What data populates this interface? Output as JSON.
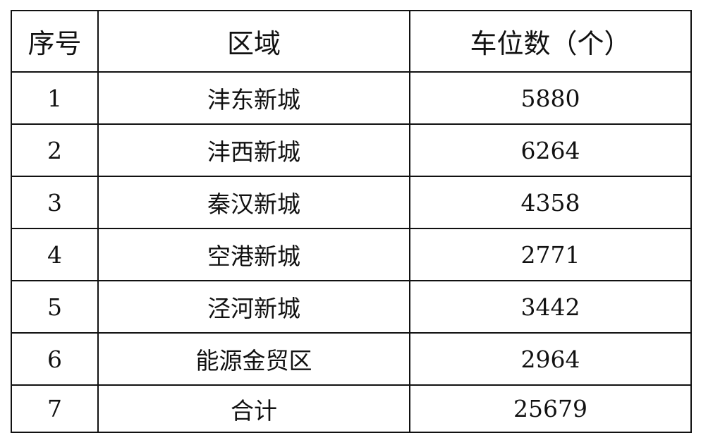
{
  "table": {
    "headers": [
      "序号",
      "区域",
      "车位数（个）"
    ],
    "rows": [
      [
        "1",
        "沣东新城",
        "5880"
      ],
      [
        "2",
        "沣西新城",
        "6264"
      ],
      [
        "3",
        "秦汉新城",
        "4358"
      ],
      [
        "4",
        "空港新城",
        "2771"
      ],
      [
        "5",
        "泾河新城",
        "3442"
      ],
      [
        "6",
        "能源金贸区",
        "2964"
      ],
      [
        "7",
        "合计",
        "25679"
      ]
    ]
  }
}
